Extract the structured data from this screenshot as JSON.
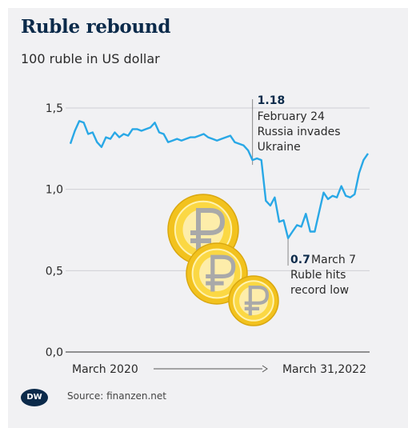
{
  "title": "Ruble rebound",
  "subtitle": "100 ruble in US dollar",
  "source": "Source: finanzen.net",
  "logo": "DW",
  "colors": {
    "line": "#29a8e6",
    "title": "#0b2a4a",
    "coin_outer": "#f2c21e",
    "coin_inner": "#fbd844",
    "coin_symbol": "#a9a9a9"
  },
  "chart_data": {
    "type": "line",
    "title": "Ruble rebound",
    "subtitle": "100 ruble in US dollar",
    "ylim": [
      0,
      1.5
    ],
    "y_ticks": [
      "1,5",
      "1,0",
      "0,5",
      "0,0"
    ],
    "y_tick_values": [
      1.5,
      1.0,
      0.5,
      0.0
    ],
    "x_label_start": "March 2020",
    "x_label_end": "March 31,2022",
    "x_arrow": "→",
    "grid": true,
    "series": [
      {
        "values": [
          1.28,
          1.36,
          1.42,
          1.41,
          1.34,
          1.35,
          1.29,
          1.26,
          1.32,
          1.31,
          1.35,
          1.32,
          1.34,
          1.33,
          1.37,
          1.37,
          1.36,
          1.37,
          1.38,
          1.41,
          1.35,
          1.34,
          1.29,
          1.3,
          1.31,
          1.3,
          1.31,
          1.32,
          1.32,
          1.33,
          1.34,
          1.32,
          1.31,
          1.3,
          1.31,
          1.32,
          1.33,
          1.29,
          1.28,
          1.27,
          1.24,
          1.18,
          1.19,
          1.18,
          0.93,
          0.9,
          0.95,
          0.8,
          0.81,
          0.7,
          0.74,
          0.78,
          0.77,
          0.85,
          0.74,
          0.74,
          0.86,
          0.98,
          0.94,
          0.96,
          0.95,
          1.02,
          0.96,
          0.95,
          0.97,
          1.1,
          1.18,
          1.22
        ]
      }
    ],
    "annotations": [
      {
        "value": "1.18",
        "text": [
          "February 24",
          "Russia invades",
          "Ukraine"
        ]
      },
      {
        "value": "0.7",
        "text": [
          "March 7",
          "Ruble hits",
          "record low"
        ]
      }
    ]
  }
}
